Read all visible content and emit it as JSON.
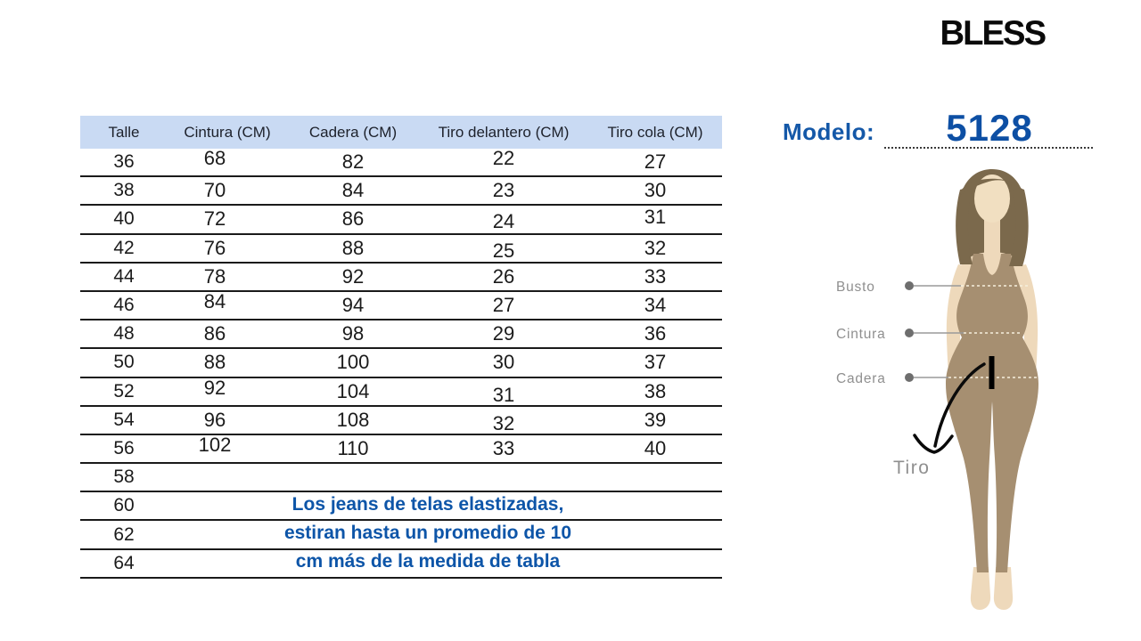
{
  "brand": {
    "logo_text": "BLESS"
  },
  "model": {
    "label": "Modelo:",
    "number": "5128"
  },
  "size_table": {
    "columns": [
      "Talle",
      "Cintura (CM)",
      "Cadera (CM)",
      "Tiro delantero (CM)",
      "Tiro cola (CM)"
    ],
    "rows": [
      {
        "talle": "36",
        "cintura": "68",
        "cadera": "82",
        "tiro_delantero": "22",
        "tiro_cola": "27"
      },
      {
        "talle": "38",
        "cintura": "70",
        "cadera": "84",
        "tiro_delantero": "23",
        "tiro_cola": "30"
      },
      {
        "talle": "40",
        "cintura": "72",
        "cadera": "86",
        "tiro_delantero": "24",
        "tiro_cola": "31"
      },
      {
        "talle": "42",
        "cintura": "76",
        "cadera": "88",
        "tiro_delantero": "25",
        "tiro_cola": "32"
      },
      {
        "talle": "44",
        "cintura": "78",
        "cadera": "92",
        "tiro_delantero": "26",
        "tiro_cola": "33"
      },
      {
        "talle": "46",
        "cintura": "84",
        "cadera": "94",
        "tiro_delantero": "27",
        "tiro_cola": "34"
      },
      {
        "talle": "48",
        "cintura": "86",
        "cadera": "98",
        "tiro_delantero": "29",
        "tiro_cola": "36"
      },
      {
        "talle": "50",
        "cintura": "88",
        "cadera": "100",
        "tiro_delantero": "30",
        "tiro_cola": "37"
      },
      {
        "talle": "52",
        "cintura": "92",
        "cadera": "104",
        "tiro_delantero": "31",
        "tiro_cola": "38"
      },
      {
        "talle": "54",
        "cintura": "96",
        "cadera": "108",
        "tiro_delantero": "32",
        "tiro_cola": "39"
      },
      {
        "talle": "56",
        "cintura": "102",
        "cadera": "110",
        "tiro_delantero": "33",
        "tiro_cola": "40"
      },
      {
        "talle": "58",
        "cintura": "",
        "cadera": "",
        "tiro_delantero": "",
        "tiro_cola": ""
      },
      {
        "talle": "60",
        "cintura": "",
        "cadera": "",
        "tiro_delantero": "",
        "tiro_cola": ""
      },
      {
        "talle": "62",
        "cintura": "",
        "cadera": "",
        "tiro_delantero": "",
        "tiro_cola": ""
      },
      {
        "talle": "64",
        "cintura": "",
        "cadera": "",
        "tiro_delantero": "",
        "tiro_cola": ""
      }
    ],
    "note_lines": [
      "Los jeans de telas elastizadas,",
      "estiran hasta un promedio de 10",
      "cm más de la medida de tabla"
    ]
  },
  "figure": {
    "labels": {
      "busto": "Busto",
      "cintura": "Cintura",
      "cadera": "Cadera",
      "tiro": "Tiro"
    }
  },
  "colors": {
    "header_bg": "#c9daf3",
    "accent_blue": "#0d55a8",
    "table_line": "#1a1a1a",
    "skin": "#eed9bb",
    "outfit": "#a68f71",
    "hair": "#7b694c",
    "label_gray": "#8f8f8f"
  }
}
